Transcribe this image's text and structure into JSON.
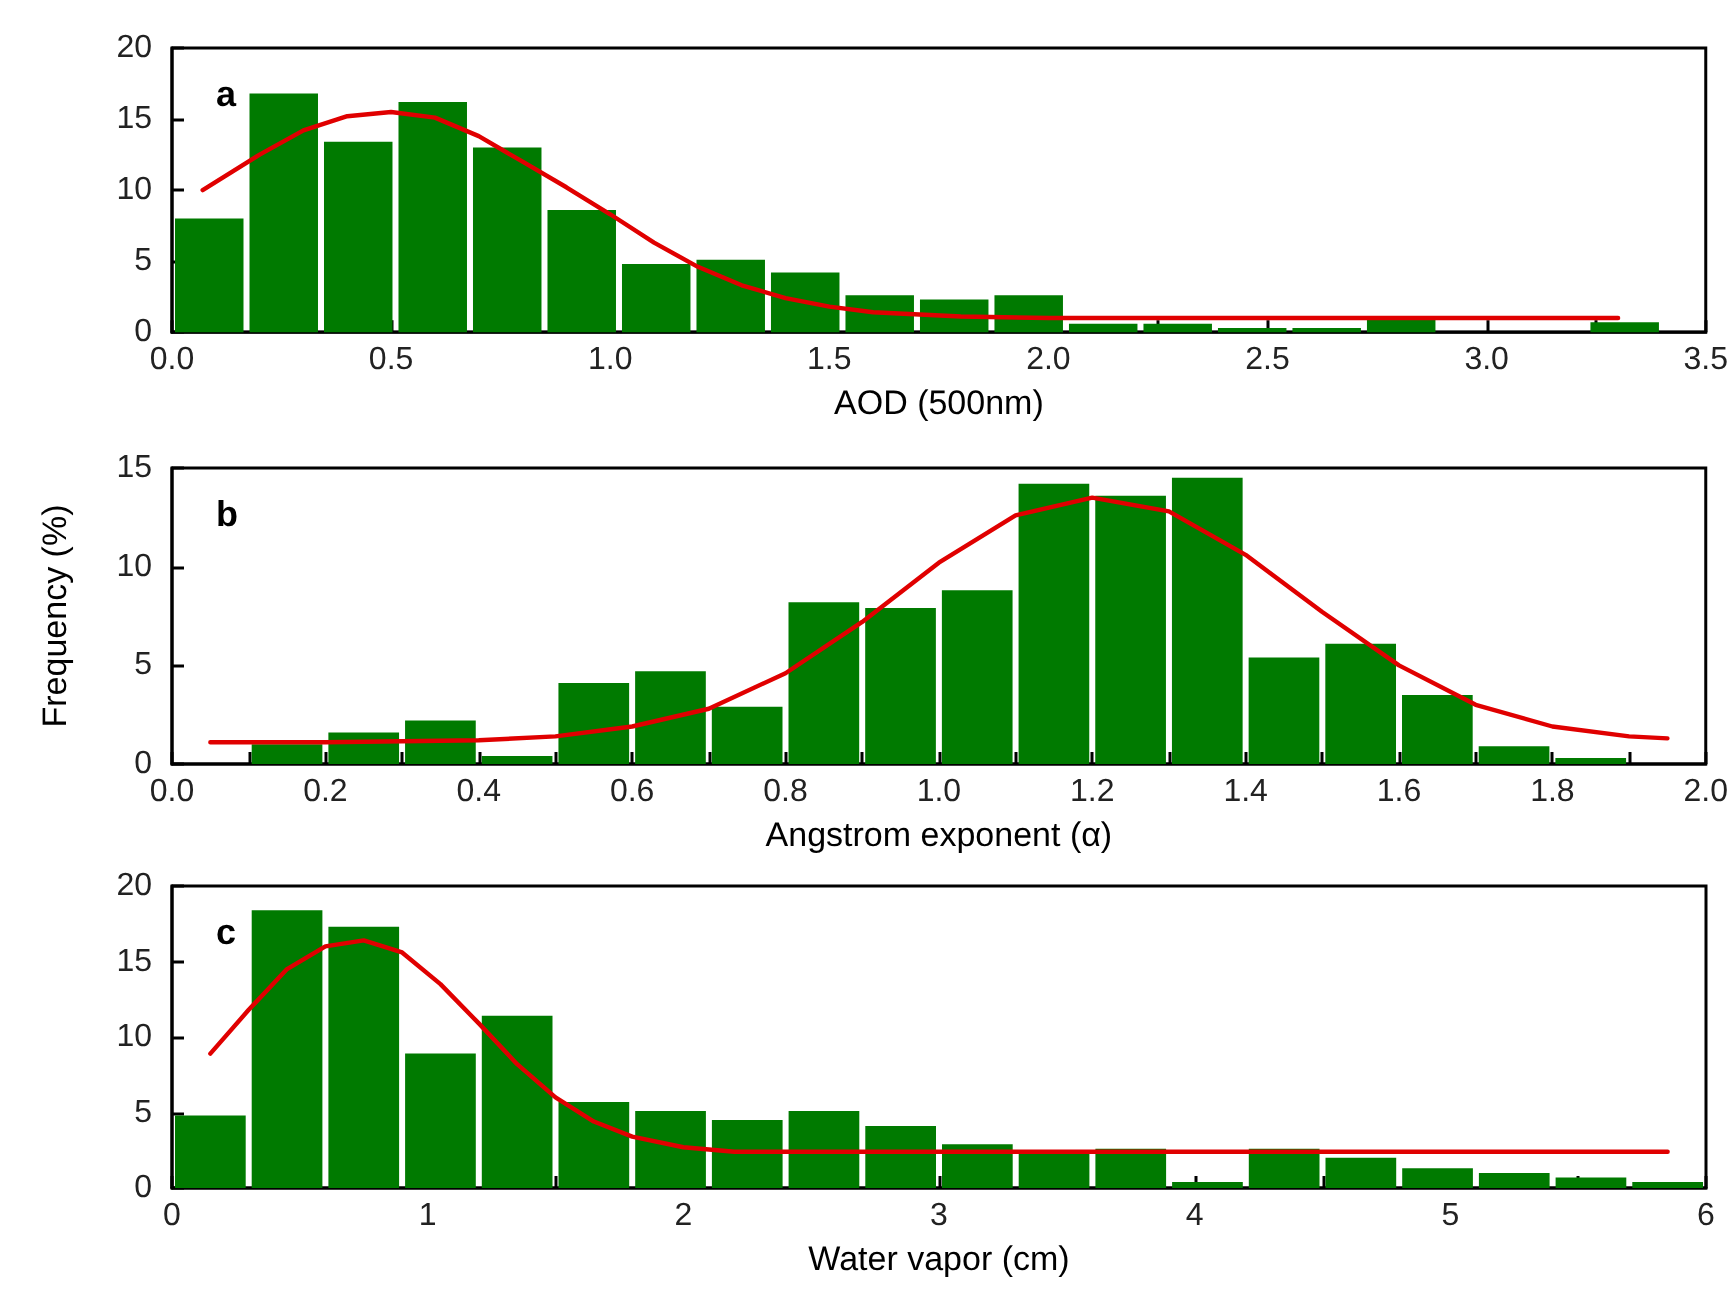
{
  "chart_data": [
    {
      "type": "histogram",
      "xlabel": "AOD (500nm)",
      "annotations": [
        "a"
      ],
      "color": "#007a00",
      "bins": [
        0,
        0.17,
        0.34,
        0.51,
        0.68,
        0.85,
        1.02,
        1.19,
        1.36,
        1.53,
        1.7,
        1.87,
        2.04,
        2.21,
        2.38,
        2.55,
        2.72,
        2.89,
        3.06,
        3.23,
        3.4
      ],
      "values": [
        8,
        16.8,
        13.4,
        16.2,
        13,
        8.6,
        4.8,
        5.1,
        4.2,
        2.6,
        2.3,
        2.6,
        0.6,
        0.6,
        0.3,
        0.3,
        0.9,
        0,
        0,
        0.7
      ],
      "series": [
        {
          "type": "line",
          "color": "#e00000",
          "x": [
            0.07,
            0.2,
            0.3,
            0.4,
            0.5,
            0.6,
            0.7,
            0.8,
            0.9,
            1.0,
            1.1,
            1.2,
            1.3,
            1.4,
            1.5,
            1.6,
            1.8,
            2.0,
            2.5,
            3.3
          ],
          "values": [
            10,
            12.5,
            14.2,
            15.2,
            15.5,
            15.1,
            13.8,
            12,
            10.2,
            8.3,
            6.3,
            4.6,
            3.3,
            2.4,
            1.8,
            1.4,
            1.1,
            1.0,
            1.0,
            1.0
          ]
        }
      ],
      "xlim": [
        0,
        3.5
      ],
      "xticks": [
        {
          "value": 0,
          "label": "0.0"
        },
        {
          "value": 0.25,
          "label": null
        },
        {
          "value": 0.5,
          "label": "0.5"
        },
        {
          "value": 0.75,
          "label": null
        },
        {
          "value": 1,
          "label": "1.0"
        },
        {
          "value": 1.25,
          "label": null
        },
        {
          "value": 1.5,
          "label": "1.5"
        },
        {
          "value": 1.75,
          "label": null
        },
        {
          "value": 2,
          "label": "2.0"
        },
        {
          "value": 2.25,
          "label": null
        },
        {
          "value": 2.5,
          "label": "2.5"
        },
        {
          "value": 2.75,
          "label": null
        },
        {
          "value": 3,
          "label": "3.0"
        },
        {
          "value": 3.25,
          "label": null
        },
        {
          "value": 3.5,
          "label": "3.5"
        }
      ],
      "ylim": [
        0,
        20
      ],
      "yticks": [
        0,
        5,
        10,
        15,
        20
      ],
      "grid": false
    },
    {
      "type": "histogram",
      "xlabel": "Angstrom exponent (α)",
      "ylabel": "Frequency (%)",
      "annotations": [
        "b"
      ],
      "color": "#007a00",
      "bins": [
        0,
        0.1,
        0.2,
        0.3,
        0.4,
        0.5,
        0.6,
        0.7,
        0.8,
        0.9,
        1.0,
        1.1,
        1.2,
        1.3,
        1.4,
        1.5,
        1.6,
        1.7,
        1.8,
        1.9
      ],
      "values": [
        0,
        1.0,
        1.6,
        2.2,
        0.4,
        4.1,
        4.7,
        2.9,
        8.2,
        7.9,
        8.8,
        14.2,
        13.6,
        14.5,
        5.4,
        6.1,
        3.5,
        0.9,
        0.3
      ],
      "series": [
        {
          "type": "line",
          "color": "#e00000",
          "x": [
            0.05,
            0.2,
            0.4,
            0.5,
            0.6,
            0.7,
            0.8,
            0.9,
            1.0,
            1.1,
            1.2,
            1.3,
            1.4,
            1.5,
            1.6,
            1.7,
            1.8,
            1.9,
            1.95
          ],
          "values": [
            1.1,
            1.1,
            1.2,
            1.4,
            1.9,
            2.8,
            4.6,
            7.2,
            10.2,
            12.6,
            13.5,
            12.8,
            10.6,
            7.7,
            5.0,
            3.0,
            1.9,
            1.4,
            1.3
          ]
        }
      ],
      "xlim": [
        0,
        2
      ],
      "xticks": [
        {
          "value": 0,
          "label": "0.0"
        },
        {
          "value": 0.1,
          "label": null
        },
        {
          "value": 0.2,
          "label": "0.2"
        },
        {
          "value": 0.3,
          "label": null
        },
        {
          "value": 0.4,
          "label": "0.4"
        },
        {
          "value": 0.5,
          "label": null
        },
        {
          "value": 0.6,
          "label": "0.6"
        },
        {
          "value": 0.7,
          "label": null
        },
        {
          "value": 0.8,
          "label": "0.8"
        },
        {
          "value": 0.9,
          "label": null
        },
        {
          "value": 1,
          "label": "1.0"
        },
        {
          "value": 1.1,
          "label": null
        },
        {
          "value": 1.2,
          "label": "1.2"
        },
        {
          "value": 1.3,
          "label": null
        },
        {
          "value": 1.4,
          "label": "1.4"
        },
        {
          "value": 1.5,
          "label": null
        },
        {
          "value": 1.6,
          "label": "1.6"
        },
        {
          "value": 1.7,
          "label": null
        },
        {
          "value": 1.8,
          "label": "1.8"
        },
        {
          "value": 1.9,
          "label": null
        },
        {
          "value": 2,
          "label": "2.0"
        }
      ],
      "ylim": [
        0,
        15
      ],
      "yticks": [
        0,
        5,
        10,
        15
      ],
      "grid": false
    },
    {
      "type": "histogram",
      "xlabel": "Water vapor (cm)",
      "annotations": [
        "c"
      ],
      "color": "#007a00",
      "bins": [
        0,
        0.3,
        0.6,
        0.9,
        1.2,
        1.5,
        1.8,
        2.1,
        2.4,
        2.7,
        3.0,
        3.3,
        3.6,
        3.9,
        4.2,
        4.5,
        4.8,
        5.1,
        5.4,
        5.7,
        6.0
      ],
      "values": [
        4.8,
        18.4,
        17.3,
        8.9,
        11.4,
        5.7,
        5.1,
        4.5,
        5.1,
        4.1,
        2.9,
        2.4,
        2.6,
        0.4,
        2.6,
        2.0,
        1.3,
        1.0,
        0.7,
        0.4
      ],
      "series": [
        {
          "type": "line",
          "color": "#e00000",
          "x": [
            0.15,
            0.3,
            0.45,
            0.6,
            0.75,
            0.9,
            1.05,
            1.2,
            1.35,
            1.5,
            1.65,
            1.8,
            2.0,
            2.2,
            2.5,
            3,
            4,
            5,
            5.85
          ],
          "values": [
            8.9,
            11.8,
            14.5,
            16,
            16.4,
            15.6,
            13.5,
            10.9,
            8.2,
            6,
            4.4,
            3.4,
            2.7,
            2.4,
            2.4,
            2.4,
            2.4,
            2.4,
            2.4
          ]
        }
      ],
      "xlim": [
        0,
        6
      ],
      "xticks": [
        0,
        {
          "value": 0.5,
          "label": null
        },
        1,
        {
          "value": 1.5,
          "label": null
        },
        2,
        {
          "value": 2.5,
          "label": null
        },
        3,
        {
          "value": 3.5,
          "label": null
        },
        4,
        {
          "value": 4.5,
          "label": null
        },
        5,
        {
          "value": 5.5,
          "label": null
        },
        6
      ],
      "ylim": [
        0,
        20
      ],
      "yticks": [
        0,
        5,
        10,
        15,
        20
      ],
      "grid": false
    }
  ]
}
